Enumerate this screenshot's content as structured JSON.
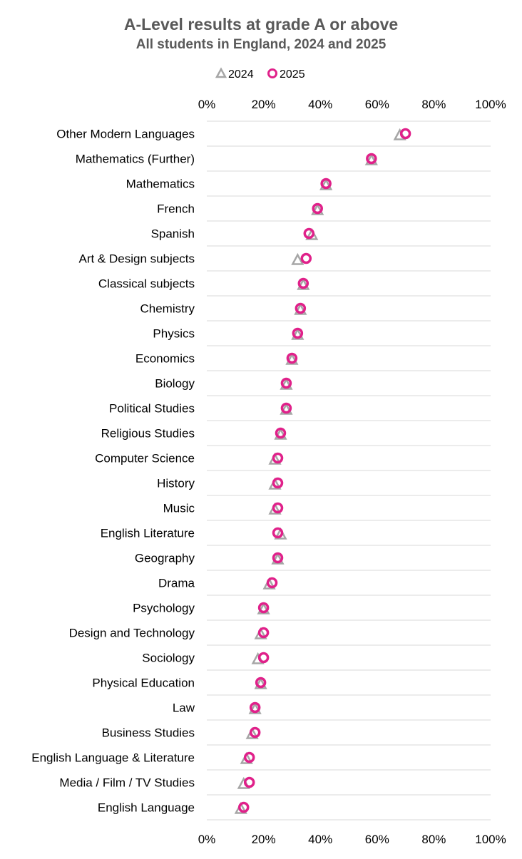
{
  "chart_data": {
    "type": "scatter",
    "title": "A-Level results at grade A or above",
    "subtitle": "All students in England, 2024 and 2025",
    "xlabel": "",
    "ylabel": "",
    "xlim": [
      0,
      100
    ],
    "x_ticks": [
      "0%",
      "20%",
      "40%",
      "60%",
      "80%",
      "100%"
    ],
    "x_tick_values": [
      0,
      20,
      40,
      60,
      80,
      100
    ],
    "x_axis_position": "top-and-bottom",
    "grid": "horizontal",
    "legend_position": "top-center",
    "categories": [
      "Other Modern Languages",
      "Mathematics (Further)",
      "Mathematics",
      "French",
      "Spanish",
      "Art & Design subjects",
      "Classical subjects",
      "Chemistry",
      "Physics",
      "Economics",
      "Biology",
      "Political Studies",
      "Religious Studies",
      "Computer Science",
      "History",
      "Music",
      "English Literature",
      "Geography",
      "Drama",
      "Psychology",
      "Design and Technology",
      "Sociology",
      "Physical Education",
      "Law",
      "Business Studies",
      "English Language & Literature",
      "Media / Film / TV Studies",
      "English Language"
    ],
    "series": [
      {
        "name": "2024",
        "marker": "triangle",
        "color": "#a6a6a6",
        "values": [
          68,
          58,
          42,
          39,
          37,
          32,
          34,
          33,
          32,
          30,
          28,
          28,
          26,
          24,
          24,
          24,
          26,
          25,
          22,
          20,
          19,
          18,
          19,
          17,
          16,
          14,
          13,
          12
        ]
      },
      {
        "name": "2025",
        "marker": "circle",
        "color": "#e0218a",
        "values": [
          70,
          58,
          42,
          39,
          36,
          35,
          34,
          33,
          32,
          30,
          28,
          28,
          26,
          25,
          25,
          25,
          25,
          25,
          23,
          20,
          20,
          20,
          19,
          17,
          17,
          15,
          15,
          13
        ]
      }
    ]
  }
}
